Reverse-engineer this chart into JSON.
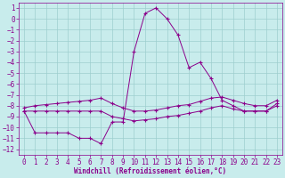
{
  "xlabel": "Windchill (Refroidissement éolien,°C)",
  "x": [
    0,
    1,
    2,
    3,
    4,
    5,
    6,
    7,
    8,
    9,
    10,
    11,
    12,
    13,
    14,
    15,
    16,
    17,
    18,
    19,
    20,
    21,
    22,
    23
  ],
  "y_line1": [
    -8.5,
    -10.5,
    -10.5,
    -10.5,
    -10.5,
    -11.0,
    -11.0,
    -11.5,
    -9.5,
    -9.5,
    -3.0,
    0.5,
    1.0,
    0.0,
    -1.5,
    -4.5,
    -4.0,
    -5.5,
    -7.5,
    -8.0,
    -8.5,
    -8.5,
    -8.5,
    -7.8
  ],
  "y_line2": [
    -8.2,
    -8.0,
    -7.9,
    -7.8,
    -7.7,
    -7.6,
    -7.5,
    -7.3,
    -7.8,
    -8.2,
    -8.5,
    -8.5,
    -8.4,
    -8.2,
    -8.0,
    -7.9,
    -7.6,
    -7.3,
    -7.2,
    -7.5,
    -7.8,
    -8.0,
    -8.0,
    -7.5
  ],
  "y_line3": [
    -8.5,
    -8.5,
    -8.5,
    -8.5,
    -8.5,
    -8.5,
    -8.5,
    -8.5,
    -9.0,
    -9.2,
    -9.4,
    -9.3,
    -9.2,
    -9.0,
    -8.9,
    -8.7,
    -8.5,
    -8.2,
    -8.0,
    -8.3,
    -8.5,
    -8.5,
    -8.5,
    -8.0
  ],
  "line_color": "#8B008B",
  "marker": "+",
  "markersize": 3,
  "linewidth": 0.7,
  "bg_color": "#c8ecec",
  "grid_color": "#9ecece",
  "ylim": [
    -12.5,
    1.5
  ],
  "xlim": [
    -0.5,
    23.5
  ],
  "yticks": [
    1,
    0,
    -1,
    -2,
    -3,
    -4,
    -5,
    -6,
    -7,
    -8,
    -9,
    -10,
    -11,
    -12
  ],
  "xticks": [
    0,
    1,
    2,
    3,
    4,
    5,
    6,
    7,
    8,
    9,
    10,
    11,
    12,
    13,
    14,
    15,
    16,
    17,
    18,
    19,
    20,
    21,
    22,
    23
  ],
  "tick_fontsize": 5.5,
  "xlabel_fontsize": 5.5
}
